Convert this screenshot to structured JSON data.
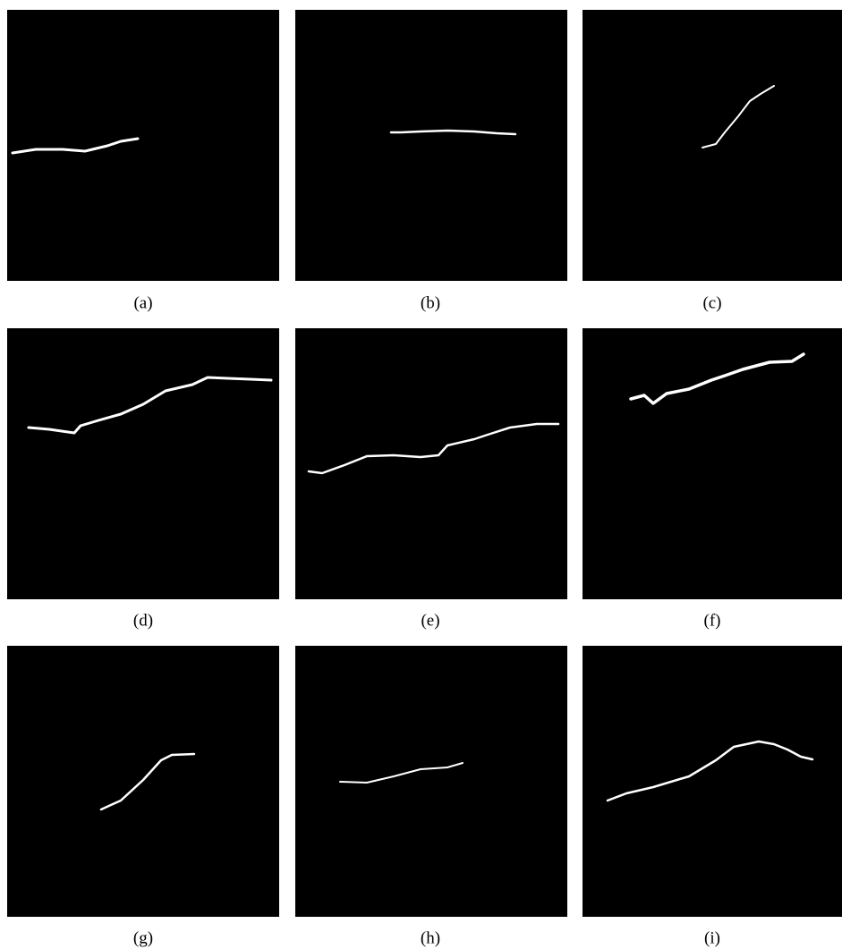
{
  "panels": [
    {
      "caption": "(a)"
    },
    {
      "caption": "(b)"
    },
    {
      "caption": "(c)"
    },
    {
      "caption": "(d)"
    },
    {
      "caption": "(e)"
    },
    {
      "caption": "(f)"
    },
    {
      "caption": "(g)"
    },
    {
      "caption": "(h)"
    },
    {
      "caption": "(i)"
    }
  ]
}
